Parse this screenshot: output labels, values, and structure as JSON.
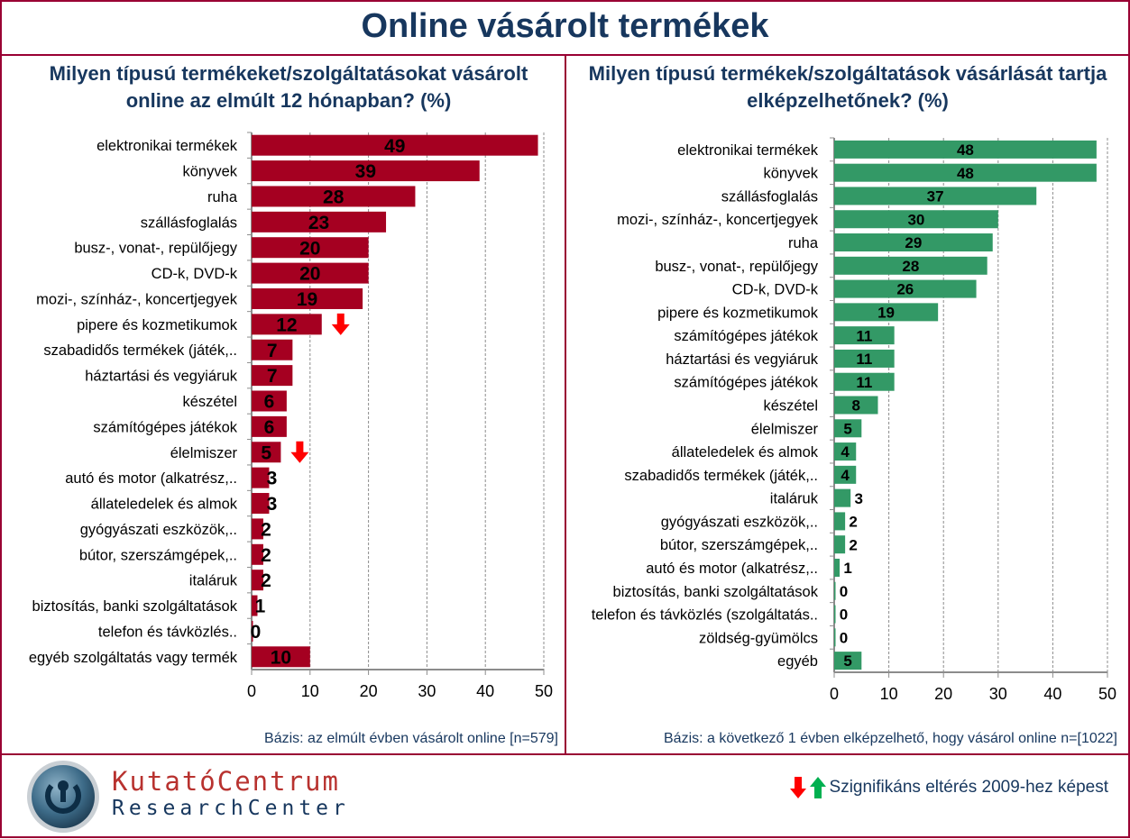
{
  "title": "Online vásárolt termékek",
  "colors": {
    "left_bar": "#A50021",
    "right_bar": "#339966",
    "down_arrow": "#FF0000",
    "up_arrow": "#00B050",
    "frame": "#990033",
    "title": "#17375E"
  },
  "chart_data": [
    {
      "type": "bar",
      "orientation": "horizontal",
      "title": "Milyen típusú termékeket/szolgáltatásokat vásárolt online az elmúlt 12 hónapban? (%)",
      "categories": [
        "elektronikai termékek",
        "könyvek",
        "ruha",
        "szállásfoglalás",
        "busz-, vonat-, repülőjegy",
        "CD-k, DVD-k",
        "mozi-, színház-, koncertjegyek",
        "pipere és kozmetikumok",
        "szabadidős termékek (játék,..",
        "háztartási és vegyiáruk",
        "készétel",
        "számítógépes játékok",
        "élelmiszer",
        "autó és motor (alkatrész,..",
        "állateledelek és almok",
        "gyógyászati eszközök,..",
        "bútor, szerszámgépek,..",
        "italáruk",
        "biztosítás, banki szolgáltatások",
        "telefon és távközlés..",
        "egyéb szolgáltatás vagy termék"
      ],
      "values": [
        49,
        39,
        28,
        23,
        20,
        20,
        19,
        12,
        7,
        7,
        6,
        6,
        5,
        3,
        3,
        2,
        2,
        2,
        1,
        0,
        10
      ],
      "significant_down": [
        "pipere és kozmetikumok",
        "élelmiszer"
      ],
      "xlim": [
        0,
        50
      ],
      "xticks": [
        "0",
        "10",
        "20",
        "30",
        "40",
        "50"
      ],
      "grid": true,
      "basis": "Bázis: az elmúlt évben vásárolt online [n=579]"
    },
    {
      "type": "bar",
      "orientation": "horizontal",
      "title": "Milyen típusú termékek/szolgáltatások vásárlását tartja elképzelhetőnek? (%)",
      "categories": [
        "elektronikai termékek",
        "könyvek",
        "szállásfoglalás",
        "mozi-, színház-, koncertjegyek",
        "ruha",
        "busz-, vonat-, repülőjegy",
        "CD-k, DVD-k",
        "pipere és kozmetikumok",
        "számítógépes játékok",
        "háztartási és vegyiáruk",
        "számítógépes játékok",
        "készétel",
        "élelmiszer",
        "állateledelek és almok",
        "szabadidős termékek (játék,..",
        "italáruk",
        "gyógyászati eszközök,..",
        "bútor, szerszámgépek,..",
        "autó és motor (alkatrész,..",
        "biztosítás, banki szolgáltatások",
        "telefon és távközlés (szolgáltatás..",
        "zöldség-gyümölcs",
        "egyéb"
      ],
      "values": [
        48,
        48,
        37,
        30,
        29,
        28,
        26,
        19,
        11,
        11,
        11,
        8,
        5,
        4,
        4,
        3,
        2,
        2,
        1,
        0,
        0,
        0,
        5
      ],
      "xlim": [
        0,
        50
      ],
      "xticks": [
        "0",
        "10",
        "20",
        "30",
        "40",
        "50"
      ],
      "grid": true,
      "basis": "Bázis: a következő 1 évben elképzelhető, hogy vásárol online n=[1022]"
    }
  ],
  "footer": {
    "logo_text_top": "KutatóCentrum",
    "logo_text_bottom": "ResearchCenter",
    "legend": "Szignifikáns eltérés 2009-hez képest",
    "legend_icons": [
      "arrow-down-red",
      "arrow-up-green"
    ]
  }
}
